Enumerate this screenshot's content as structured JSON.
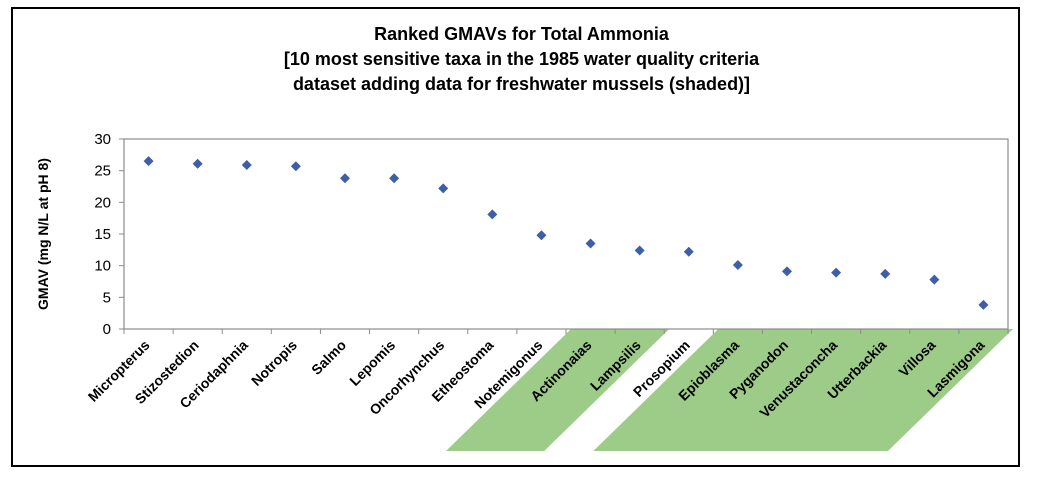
{
  "chart_data": {
    "type": "scatter",
    "title": [
      "Ranked GMAVs for Total Ammonia",
      "[10 most sensitive taxa in the 1985 water quality criteria",
      "dataset adding data for freshwater mussels (shaded)]"
    ],
    "xlabel": "",
    "ylabel": "GMAV (mg N/L at pH 8)",
    "ylim": [
      0,
      30
    ],
    "yticks": [
      0,
      5,
      10,
      15,
      20,
      25,
      30
    ],
    "grid": false,
    "legend": "none",
    "categories": [
      "Micropterus",
      "Stizostedion",
      "Ceriodaphnia",
      "Notropis",
      "Salmo",
      "Lepomis",
      "Oncorhynchus",
      "Etheostoma",
      "Notemigonus",
      "Actinonaias",
      "Lampsilis",
      "Prosopium",
      "Epioblasma",
      "Pyganodon",
      "Venustaconcha",
      "Utterbackia",
      "Villosa",
      "Lasmigona"
    ],
    "values": [
      26.5,
      26.1,
      25.9,
      25.7,
      23.8,
      23.8,
      22.2,
      18.1,
      14.8,
      13.5,
      12.4,
      12.2,
      10.1,
      9.1,
      8.9,
      8.7,
      7.8,
      3.8
    ],
    "shaded": [
      false,
      false,
      false,
      false,
      false,
      false,
      false,
      false,
      false,
      true,
      true,
      false,
      true,
      true,
      true,
      true,
      true,
      true
    ],
    "marker_color": "#3f5ea8",
    "shade_color": "#9dcb88"
  }
}
